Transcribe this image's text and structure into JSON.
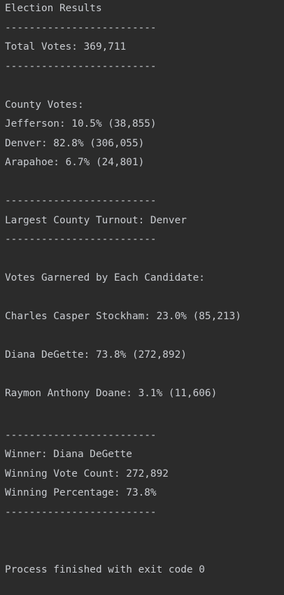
{
  "console": {
    "title": "Election Results",
    "divider": "-------------------------",
    "total_votes": "Total Votes: 369,711",
    "county_header": "County Votes:",
    "counties": [
      "Jefferson: 10.5% (38,855)",
      "Denver: 82.8% (306,055)",
      "Arapahoe: 6.7% (24,801)"
    ],
    "largest_county": "Largest County Turnout: Denver",
    "candidate_header": "Votes Garnered by Each Candidate:",
    "candidates": [
      "Charles Casper Stockham: 23.0% (85,213)",
      "Diana DeGette: 73.8% (272,892)",
      "Raymon Anthony Doane: 3.1% (11,606)"
    ],
    "winner": "Winner: Diana DeGette",
    "winning_count": "Winning Vote Count: 272,892",
    "winning_percentage": "Winning Percentage: 73.8%",
    "process_exit": "Process finished with exit code 0"
  }
}
